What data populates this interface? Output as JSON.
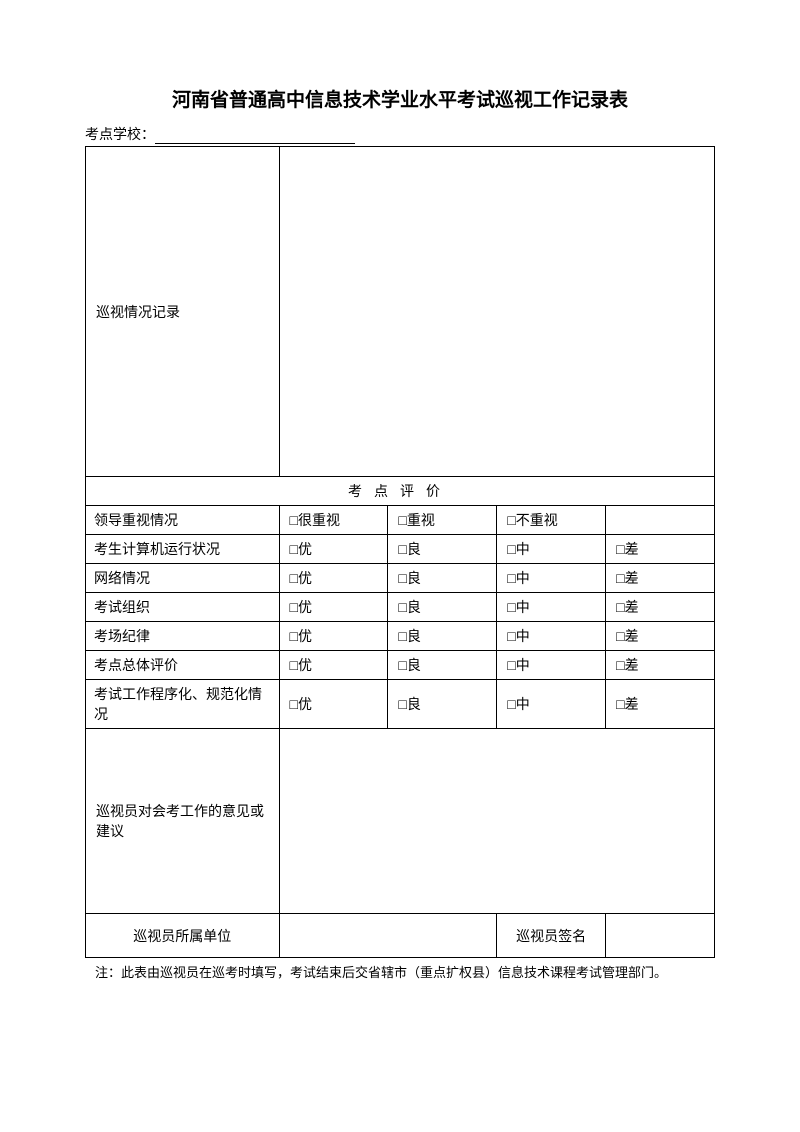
{
  "title": "河南省普通高中信息技术学业水平考试巡视工作记录表",
  "school_label": "考点学校：",
  "record_label": "巡视情况记录",
  "section_header": "考点评价",
  "eval_rows": [
    {
      "label": "领导重视情况",
      "opts": [
        "□很重视",
        "□重视",
        "□不重视",
        ""
      ]
    },
    {
      "label": "考生计算机运行状况",
      "opts": [
        "□优",
        "□良",
        "□中",
        "□差"
      ]
    },
    {
      "label": "网络情况",
      "opts": [
        "□优",
        "□良",
        "□中",
        "□差"
      ]
    },
    {
      "label": "考试组织",
      "opts": [
        "□优",
        "□良",
        "□中",
        "□差"
      ]
    },
    {
      "label": "考场纪律",
      "opts": [
        "□优",
        "□良",
        "□中",
        "□差"
      ]
    },
    {
      "label": "考点总体评价",
      "opts": [
        "□优",
        "□良",
        "□中",
        "□差"
      ]
    },
    {
      "label": "考试工作程序化、规范化情况",
      "opts": [
        "□优",
        "□良",
        "□中",
        "□差"
      ],
      "tall": true
    }
  ],
  "suggestion_label": "巡视员对会考工作的意见或建议",
  "unit_label": "巡视员所属单位",
  "signature_label": "巡视员签名",
  "footnote": "注：此表由巡视员在巡考时填写，考试结束后交省辖市（重点扩权县）信息技术课程考试管理部门。",
  "colors": {
    "text": "#000000",
    "border": "#000000",
    "background": "#ffffff"
  }
}
